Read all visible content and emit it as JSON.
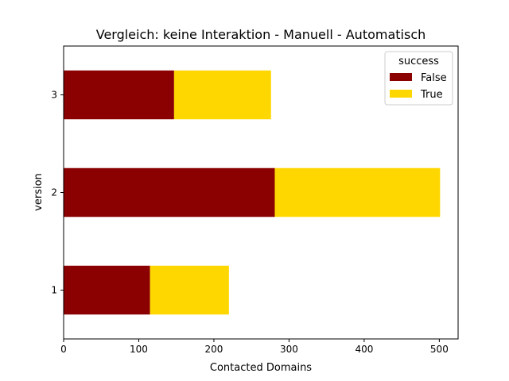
{
  "chart_data": {
    "type": "bar",
    "orientation": "horizontal",
    "stacked": true,
    "title": "Vergleich: keine Interaktion - Manuell -  Automatisch",
    "xlabel": "Contacted Domains",
    "ylabel": "version",
    "categories": [
      "1",
      "2",
      "3"
    ],
    "series": [
      {
        "name": "False",
        "color": "#8b0000",
        "values": [
          115,
          281,
          147
        ]
      },
      {
        "name": "True",
        "color": "#ffd700",
        "values": [
          105,
          220,
          129
        ]
      }
    ],
    "xlim": [
      0,
      525
    ],
    "xticks": [
      0,
      100,
      200,
      300,
      400,
      500
    ],
    "grid": false,
    "legend": {
      "title": "success",
      "placement": "top-right"
    }
  }
}
